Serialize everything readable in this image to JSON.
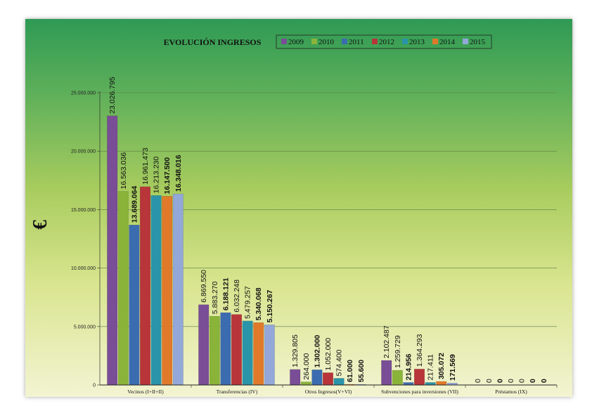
{
  "chart_data": {
    "type": "bar",
    "title": "EVOLUCIÓN INGRESOS",
    "ylabel": "€",
    "xlabel": "",
    "ylim": [
      0,
      25000000
    ],
    "yticks": [
      {
        "value": 0,
        "label": "0"
      },
      {
        "value": 5000000,
        "label": "5.000.000"
      },
      {
        "value": 10000000,
        "label": "10.000.000"
      },
      {
        "value": 15000000,
        "label": "15.000.000"
      },
      {
        "value": 20000000,
        "label": "20.000.000"
      },
      {
        "value": 25000000,
        "label": "25.000.000"
      }
    ],
    "grid": true,
    "legend": "top",
    "categories": [
      "Vecinos (I+II+II)",
      "Transferencias (IV)",
      "Otros Ingresos(V+VI)",
      "Subvenciones para inversiones (VII)",
      "Préstamos (IX)"
    ],
    "series": [
      {
        "name": "2009",
        "color": "#7a4e96",
        "values": [
          23026795,
          6869550,
          1329805,
          2102487,
          0
        ],
        "labels": [
          "23.026.795",
          "6.869.550",
          "1.329.805",
          "2.102.487",
          "0"
        ],
        "bold": false
      },
      {
        "name": "2010",
        "color": "#8ab33a",
        "values": [
          16563036,
          5883270,
          264000,
          1259729,
          0
        ],
        "labels": [
          "16.563.036",
          "5.883.270",
          "264.000",
          "1.259.729",
          "0"
        ],
        "bold": false
      },
      {
        "name": "2011",
        "color": "#3b6cb0",
        "values": [
          13689064,
          6188121,
          1302000,
          214956,
          0
        ],
        "labels": [
          "13.689.064",
          "6.188.121",
          "1.302.000",
          "214.956",
          "0"
        ],
        "bold": true
      },
      {
        "name": "2012",
        "color": "#b8353a",
        "values": [
          16961473,
          6032248,
          1052000,
          1364293,
          0
        ],
        "labels": [
          "16.961.473",
          "6.032.248",
          "1.052.000",
          "1.364.293",
          "0"
        ],
        "bold": false
      },
      {
        "name": "2013",
        "color": "#2a94a8",
        "values": [
          16213230,
          5479257,
          574400,
          217411,
          0
        ],
        "labels": [
          "16.213.230",
          "5.479.257",
          "574.400",
          "217.411",
          "0"
        ],
        "bold": false
      },
      {
        "name": "2014",
        "color": "#e07a2a",
        "values": [
          16147500,
          5340068,
          61000,
          305072,
          0
        ],
        "labels": [
          "16.147.500",
          "5.340.068",
          "61.000",
          "305.072",
          "0"
        ],
        "bold": true
      },
      {
        "name": "2015",
        "color": "#93a8d8",
        "values": [
          16348016,
          5150267,
          55600,
          171569,
          0
        ],
        "labels": [
          "16.348.016",
          "5.150.267",
          "55.600",
          "171.569",
          "0"
        ],
        "bold": true
      }
    ]
  }
}
